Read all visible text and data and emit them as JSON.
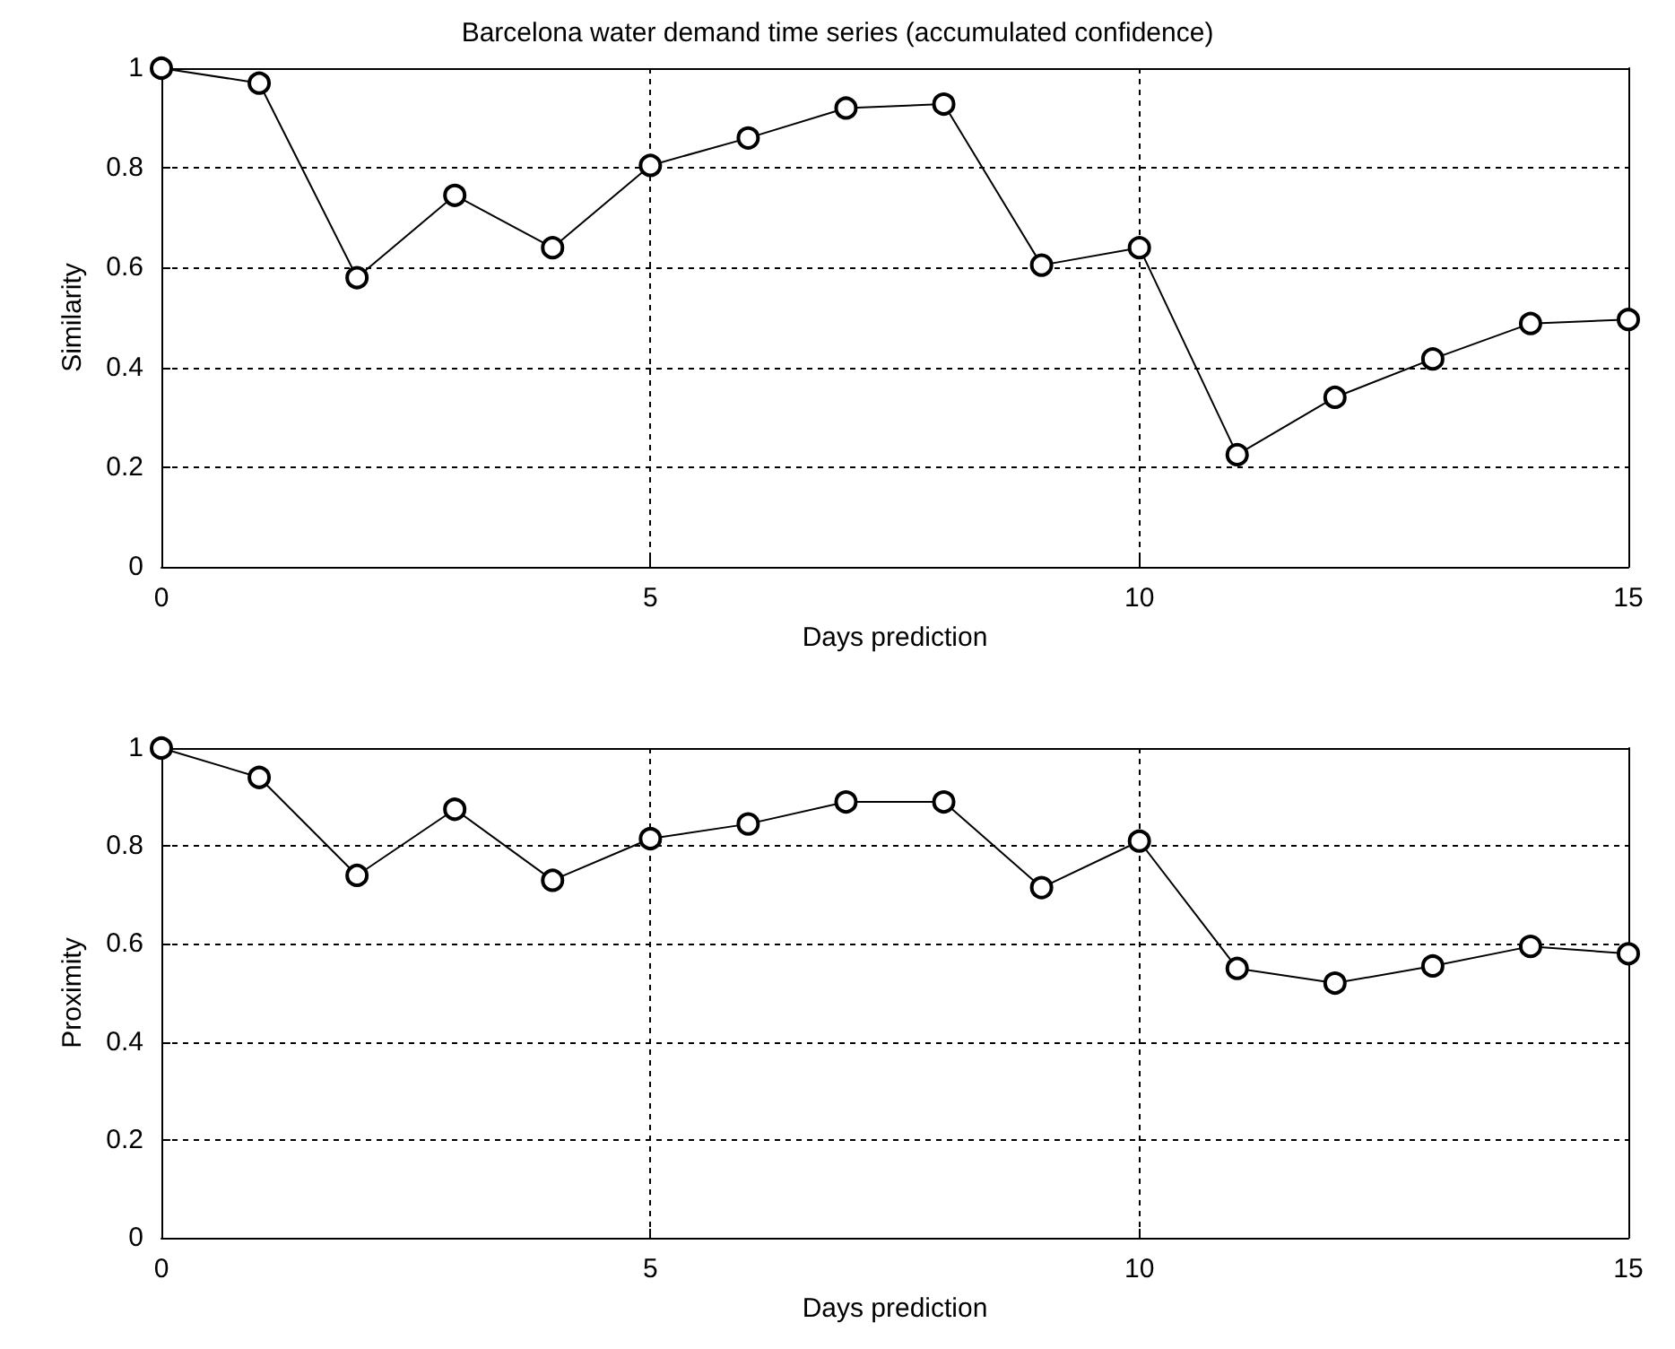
{
  "chart_data": [
    {
      "type": "line",
      "title": "Barcelona water demand time series (accumulated confidence)",
      "xlabel": "Days prediction",
      "ylabel": "Similarity",
      "x": [
        0,
        1,
        2,
        3,
        4,
        5,
        6,
        7,
        8,
        9,
        10,
        11,
        12,
        13,
        14,
        15
      ],
      "series": [
        {
          "color": "#000000",
          "values": [
            1.0,
            0.97,
            0.58,
            0.745,
            0.64,
            0.805,
            0.86,
            0.92,
            0.928,
            0.605,
            0.64,
            0.225,
            0.34,
            0.417,
            0.488,
            0.496
          ]
        }
      ],
      "xlim": [
        0,
        15
      ],
      "xticks": [
        0,
        5,
        10,
        15
      ],
      "ylim": [
        0,
        1
      ],
      "yticks": [
        0,
        0.2,
        0.4,
        0.6,
        0.8,
        1
      ],
      "grid": true,
      "marker": "circle",
      "line_style": "solid"
    },
    {
      "type": "line",
      "xlabel": "Days prediction",
      "ylabel": "Proximity",
      "x": [
        0,
        1,
        2,
        3,
        4,
        5,
        6,
        7,
        8,
        9,
        10,
        11,
        12,
        13,
        14,
        15
      ],
      "series": [
        {
          "color": "#000000",
          "values": [
            1.0,
            0.94,
            0.74,
            0.875,
            0.73,
            0.815,
            0.845,
            0.89,
            0.89,
            0.715,
            0.81,
            0.55,
            0.52,
            0.555,
            0.595,
            0.58
          ]
        }
      ],
      "xlim": [
        0,
        15
      ],
      "xticks": [
        0,
        5,
        10,
        15
      ],
      "ylim": [
        0,
        1
      ],
      "yticks": [
        0,
        0.2,
        0.4,
        0.6,
        0.8,
        1
      ],
      "grid": true,
      "marker": "circle",
      "line_style": "solid"
    }
  ]
}
